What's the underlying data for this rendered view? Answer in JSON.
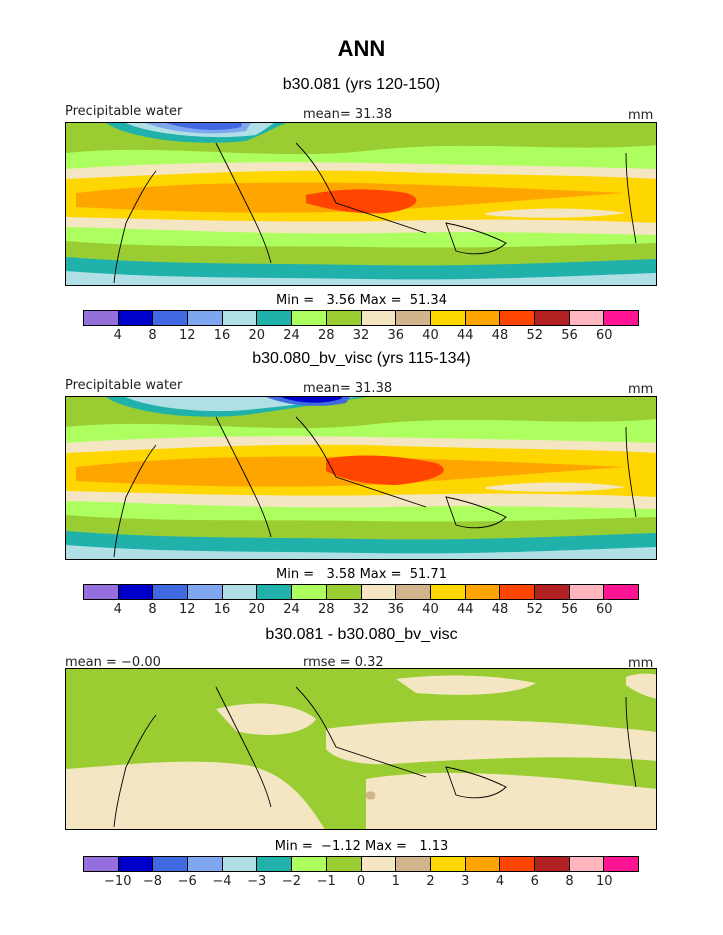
{
  "title": "ANN",
  "panels": [
    {
      "title": "b30.081 (yrs 120-150)",
      "left_label": "Precipitable water",
      "center_label": "mean=  31.38",
      "units": "mm",
      "minmax": "Min =   3.56 Max =  51.34",
      "colorbar_ticks": [
        "4",
        "8",
        "12",
        "16",
        "20",
        "24",
        "28",
        "32",
        "36",
        "40",
        "44",
        "48",
        "52",
        "56",
        "60"
      ]
    },
    {
      "title": "b30.080_bv_visc (yrs 115-134)",
      "left_label": "Precipitable water",
      "center_label": "mean=  31.38",
      "units": "mm",
      "minmax": "Min =   3.58 Max =  51.71",
      "colorbar_ticks": [
        "4",
        "8",
        "12",
        "16",
        "20",
        "24",
        "28",
        "32",
        "36",
        "40",
        "44",
        "48",
        "52",
        "56",
        "60"
      ]
    },
    {
      "title": "b30.081 - b30.080_bv_visc",
      "left_label": "mean =  −0.00",
      "center_label": "rmse =   0.32",
      "units": "mm",
      "minmax": "Min =  −1.12 Max =   1.13",
      "colorbar_ticks": [
        "−10",
        "−8",
        "−6",
        "−4",
        "−3",
        "−2",
        "−1",
        "0",
        "1",
        "2",
        "3",
        "4",
        "6",
        "8",
        "10"
      ]
    }
  ],
  "colorbar_colors": [
    "#9370db",
    "#0000cd",
    "#4169e1",
    "#7ea7f0",
    "#b0e0e6",
    "#20b2aa",
    "#adff5f",
    "#9acd32",
    "#f5e6c3",
    "#d2b48c",
    "#ffd700",
    "#ffa500",
    "#ff4500",
    "#b22222",
    "#ffb6c1",
    "#ff1493"
  ],
  "chart_data": {
    "type": "heatmap",
    "description_units": "mm",
    "fields": [
      {
        "name": "b30.081 (yrs 120-150)",
        "mean": 31.38,
        "min": 3.56,
        "max": 51.34
      },
      {
        "name": "b30.080_bv_visc (yrs 115-134)",
        "mean": 31.38,
        "min": 3.58,
        "max": 51.71
      },
      {
        "name": "b30.081 - b30.080_bv_visc",
        "mean": -0.0,
        "rmse": 0.32,
        "min": -1.12,
        "max": 1.13
      }
    ],
    "colorbar_levels_abs": [
      4,
      8,
      12,
      16,
      20,
      24,
      28,
      32,
      36,
      40,
      44,
      48,
      52,
      56,
      60
    ],
    "colorbar_levels_diff": [
      -10,
      -8,
      -6,
      -4,
      -3,
      -2,
      -1,
      0,
      1,
      2,
      3,
      4,
      6,
      8,
      10
    ]
  }
}
